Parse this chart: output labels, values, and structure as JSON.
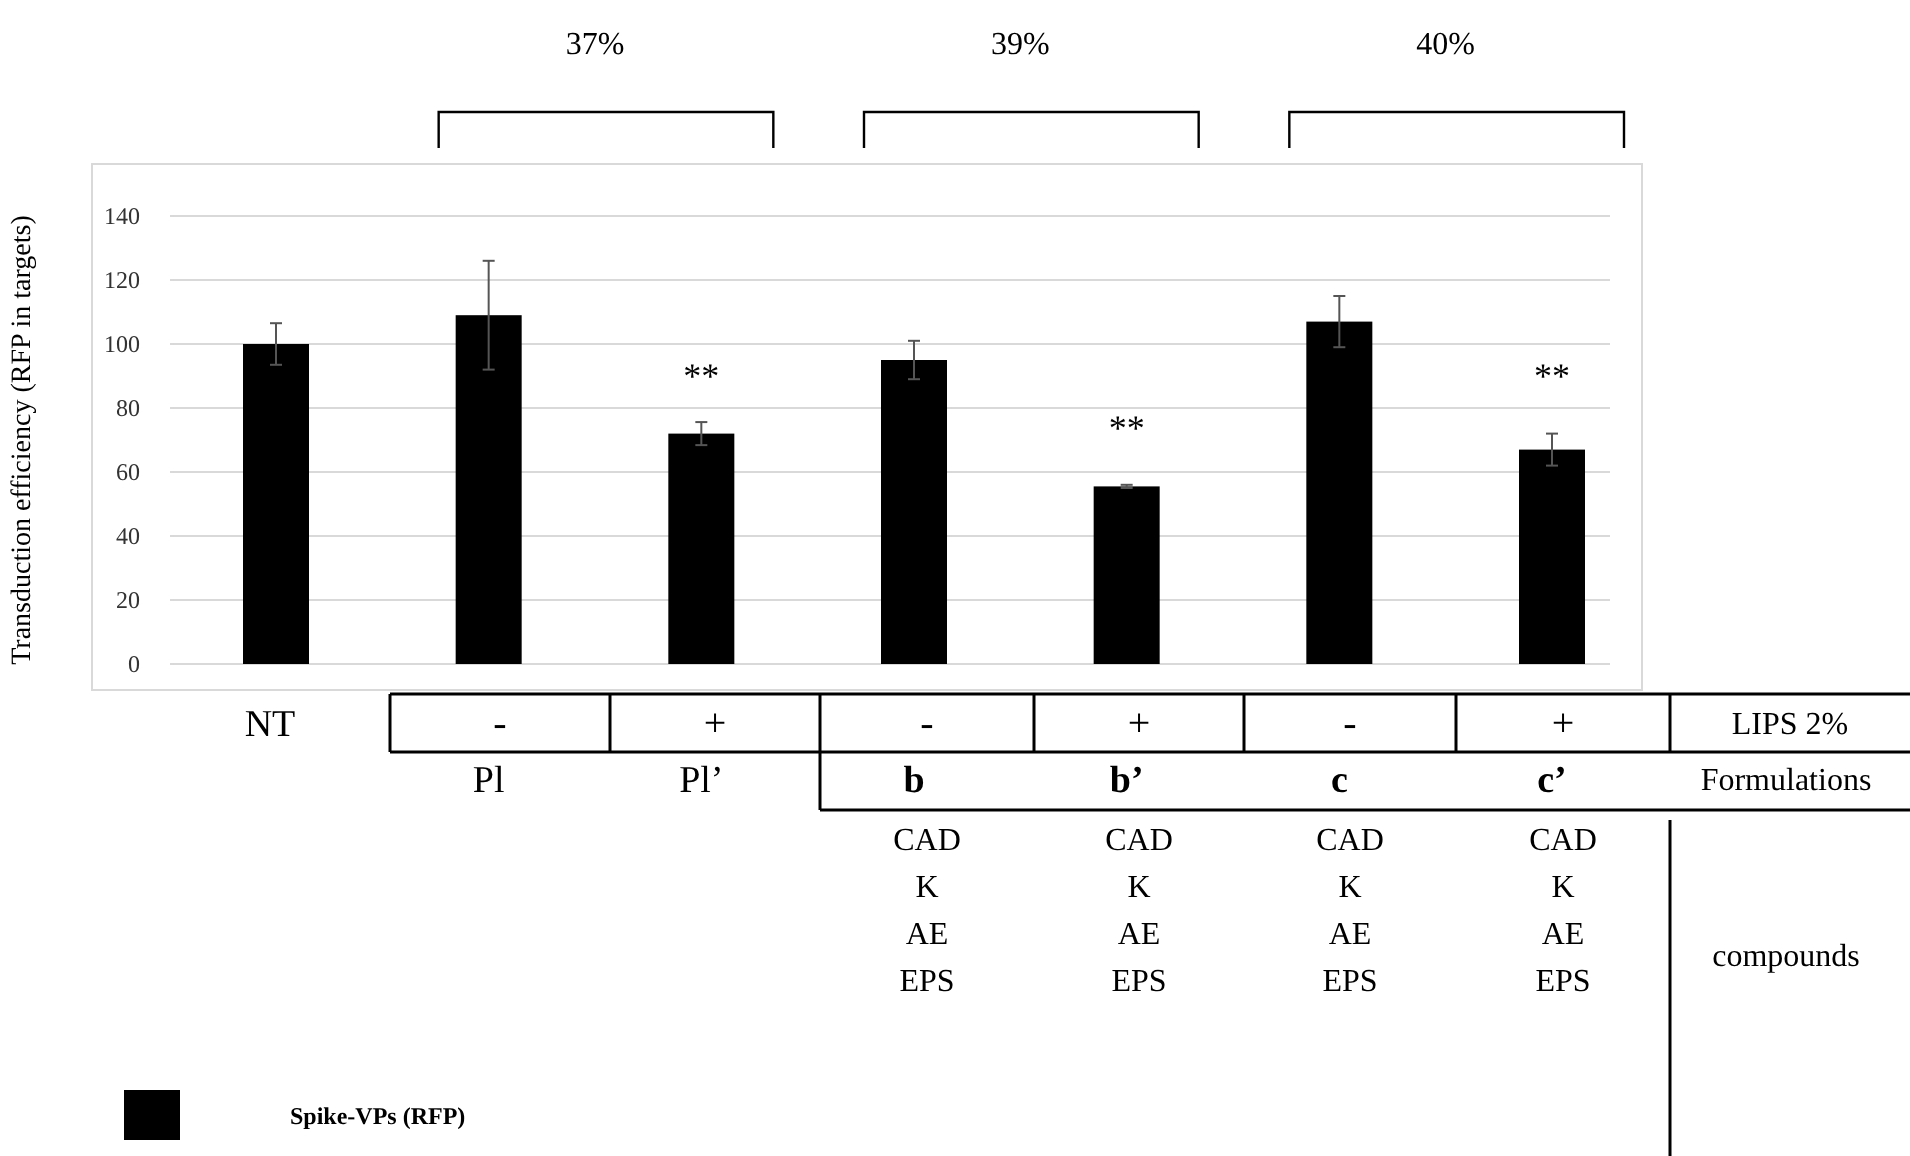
{
  "chart_data": {
    "type": "bar",
    "ylabel": "Transduction efficiency (RFP in targets)",
    "categories": [
      "NT",
      "Pl",
      "Pl’",
      "b",
      "b’",
      "c",
      "c’"
    ],
    "series": [
      {
        "name": "Spike-VPs (RFP)",
        "color": "#000000",
        "values": [
          100,
          109,
          72,
          95,
          55.5,
          107,
          67
        ],
        "errors": [
          6.5,
          17,
          3.6,
          6,
          0.5,
          8,
          5
        ]
      }
    ],
    "ylim": [
      0,
      140
    ],
    "yticks": [
      0,
      20,
      40,
      60,
      80,
      100,
      120,
      140
    ],
    "grid": "y",
    "legend": "bottom left",
    "annotations": [
      "37%",
      "39%",
      "40%",
      "-",
      "+",
      "-",
      "+",
      "-",
      "+",
      "LIPS 2%",
      "Formulations",
      "CAD",
      "K",
      "AE",
      "EPS",
      "CAD",
      "K",
      "AE",
      "EPS",
      "CAD",
      "K",
      "AE",
      "EPS",
      "CAD",
      "K",
      "AE",
      "EPS",
      "compounds",
      "**",
      "**",
      "**"
    ]
  }
}
